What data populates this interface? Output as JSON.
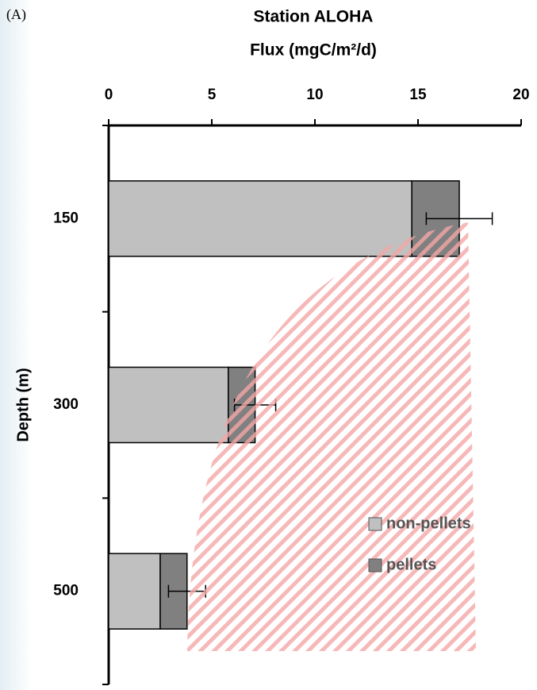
{
  "chart_data": {
    "type": "stacked_barh",
    "panel_label": "(A)",
    "title": "Station ALOHA",
    "xlabel": "Flux (mgC/m²/d)",
    "ylabel": "Depth (m)",
    "categories": [
      "150",
      "300",
      "500"
    ],
    "series": [
      {
        "name": "non-pellets",
        "color": "#c0c0c0",
        "values": [
          14.7,
          5.8,
          2.5
        ]
      },
      {
        "name": "pellets",
        "color": "#808080",
        "values": [
          2.3,
          1.3,
          1.3
        ],
        "errors": [
          1.6,
          1.0,
          0.9
        ]
      }
    ],
    "xlim": [
      0,
      20
    ],
    "xticks": [
      0,
      5,
      10,
      15,
      20
    ],
    "legend": "lower right"
  }
}
